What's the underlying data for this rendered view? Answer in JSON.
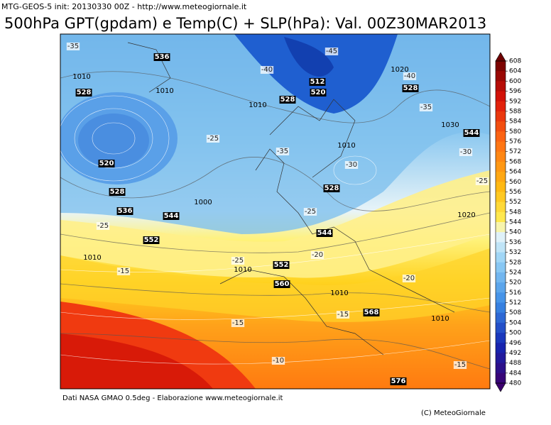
{
  "header": {
    "run_info": "MTG-GEOS-5   init: 20130330 00Z  -  http://www.meteogiornale.it",
    "title": "500hPa GPT(gpdam) e Temp(C) + SLP(hPa): Val. 00Z30MAR2013"
  },
  "map": {
    "temperature_labels": [
      -35,
      -45,
      -40,
      -40,
      -35,
      -25,
      -35,
      -30,
      -30,
      -25,
      -25,
      -25,
      -25,
      -20,
      -25,
      -15,
      -20,
      -15,
      -15,
      -10,
      -15
    ],
    "pressure_labels": [
      1010,
      1020,
      1010,
      1010,
      1030,
      1010,
      1000,
      1020,
      1010,
      1010,
      1010,
      1010
    ],
    "geopotential_labels": [
      536,
      528,
      512,
      528,
      520,
      528,
      544,
      520,
      528,
      528,
      536,
      544,
      544,
      552,
      552,
      560,
      568,
      576
    ]
  },
  "colorbar": {
    "levels": [
      608,
      604,
      600,
      596,
      592,
      588,
      584,
      580,
      576,
      572,
      568,
      564,
      560,
      556,
      552,
      548,
      544,
      540,
      536,
      532,
      528,
      524,
      520,
      516,
      512,
      508,
      504,
      500,
      496,
      492,
      488,
      484,
      480
    ]
  },
  "footer": {
    "source": "Dati NASA GMAO 0.5deg  -  Elaborazione www.meteogiornale.it",
    "copyright": "(C) MeteoGiornale"
  }
}
